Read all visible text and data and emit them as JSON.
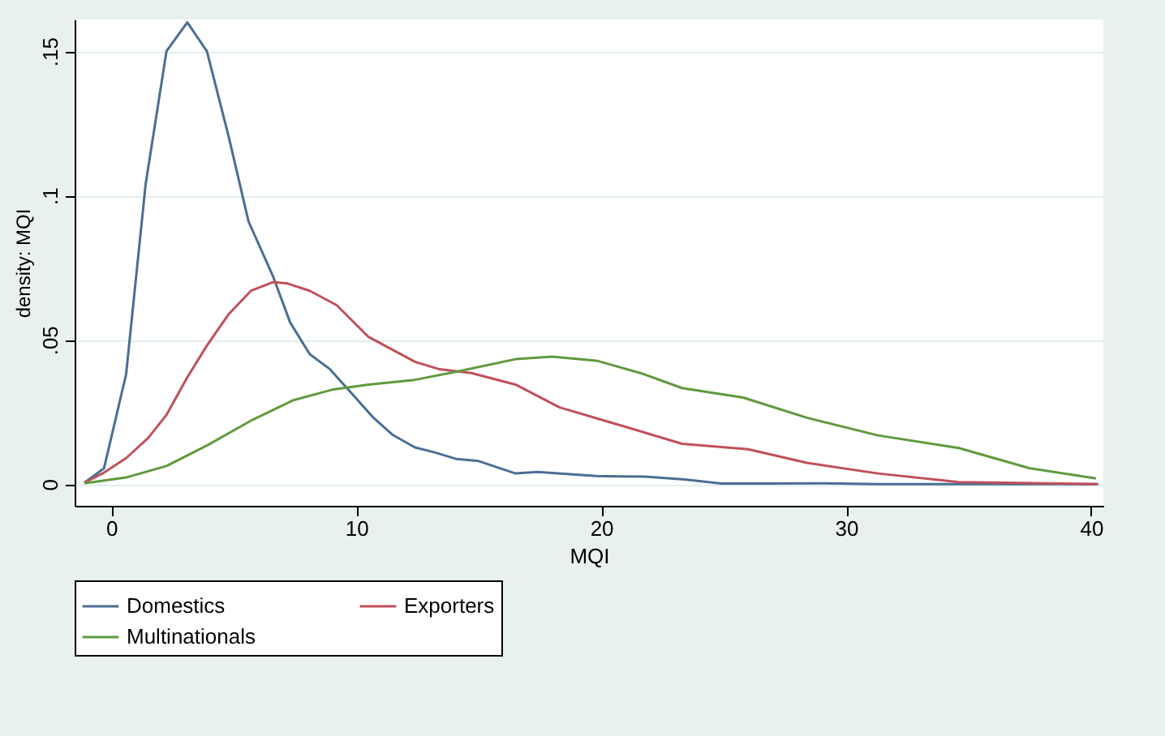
{
  "chart_data": {
    "type": "line",
    "xlabel": "MQI",
    "ylabel": "density: MQI",
    "xlim": [
      -1.5,
      40.5
    ],
    "xticks": [
      0,
      10,
      20,
      30,
      40
    ],
    "ylim": [
      -0.0075,
      0.161
    ],
    "yticks": [
      0,
      {
        "value": 0.05,
        "label": ".05"
      },
      {
        "value": 0.1,
        "label": ".1"
      },
      {
        "value": 0.15,
        "label": ".15"
      }
    ],
    "grid": "y",
    "legend": "bottom",
    "series": [
      {
        "name": "Domestics",
        "color": "#4a6e94",
        "x": [
          -1.1,
          -0.3,
          0.6,
          1.4,
          2.25,
          3.1,
          3.9,
          4.8,
          5.6,
          6.6,
          7.3,
          8.1,
          8.9,
          9.75,
          10.7,
          11.5,
          12.4,
          13.2,
          14.1,
          15.0,
          16.5,
          17.4,
          19.8,
          21.8,
          23.4,
          24.9,
          26.9,
          29.1,
          31.3,
          40.2
        ],
        "values": [
          0.0005,
          0.0055,
          0.038,
          0.104,
          0.15,
          0.16,
          0.15,
          0.12,
          0.091,
          0.072,
          0.056,
          0.045,
          0.04,
          0.032,
          0.023,
          0.017,
          0.0127,
          0.011,
          0.0087,
          0.008,
          0.0037,
          0.0042,
          0.0028,
          0.0026,
          0.0016,
          0.0002,
          0.0002,
          0.0003,
          0,
          0
        ]
      },
      {
        "name": "Exporters",
        "color": "#c0505a",
        "x": [
          -1.1,
          -0.3,
          0.6,
          1.5,
          2.25,
          3.1,
          3.9,
          4.8,
          5.7,
          6.6,
          7.2,
          8.1,
          9.2,
          10.5,
          12.4,
          13.4,
          14.7,
          16.5,
          18.3,
          20.7,
          23.3,
          26.0,
          28.4,
          31.3,
          34.6,
          40.3
        ],
        "values": [
          0.0005,
          0.004,
          0.009,
          0.016,
          0.024,
          0.037,
          0.048,
          0.059,
          0.067,
          0.07,
          0.0695,
          0.067,
          0.062,
          0.051,
          0.0424,
          0.0398,
          0.0385,
          0.0345,
          0.0266,
          0.0206,
          0.014,
          0.0121,
          0.0074,
          0.0037,
          0.0007,
          0
        ]
      },
      {
        "name": "Multinationals",
        "color": "#5e9a3e",
        "x": [
          -1.1,
          0.6,
          2.25,
          3.9,
          5.7,
          7.4,
          9.0,
          10.5,
          12.3,
          14.1,
          16.5,
          18.0,
          19.8,
          21.6,
          23.3,
          25.8,
          28.4,
          31.3,
          34.6,
          37.5,
          40.2
        ],
        "values": [
          0.0003,
          0.0023,
          0.0063,
          0.0134,
          0.022,
          0.029,
          0.0327,
          0.0345,
          0.036,
          0.039,
          0.0433,
          0.0442,
          0.0428,
          0.0385,
          0.0333,
          0.03,
          0.023,
          0.0169,
          0.0125,
          0.0055,
          0.002
        ]
      }
    ]
  }
}
